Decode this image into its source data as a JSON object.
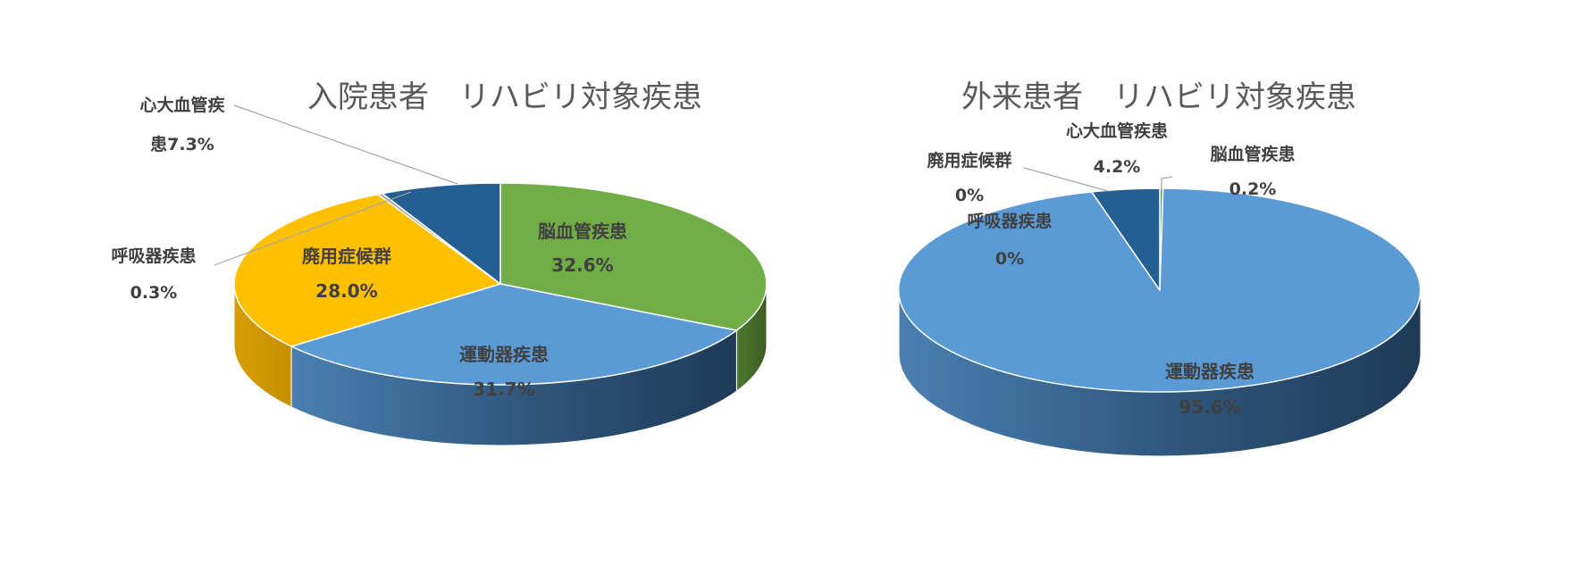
{
  "chart_data": [
    {
      "type": "pie",
      "title": "入院患者　リハビリ対象疾患",
      "slices": [
        {
          "label": "脳血管疾患",
          "value": 32.6,
          "value_text": "32.6%",
          "color": "#70AD47"
        },
        {
          "label": "運動器疾患",
          "value": 31.7,
          "value_text": "31.7%",
          "color": "#5B9BD5"
        },
        {
          "label": "廃用症候群",
          "value": 28.0,
          "value_text": "28.0%",
          "color": "#FFC000"
        },
        {
          "label": "呼吸器疾患",
          "value": 0.3,
          "value_text": "0.3%",
          "color": "#A5A5A5"
        },
        {
          "label": "心大血管疾患",
          "label_lines": [
            "心大血管疾",
            "患7.3%"
          ],
          "value": 7.3,
          "value_text": "7.3%",
          "color": "#255E91"
        }
      ]
    },
    {
      "type": "pie",
      "title": "外来患者　リハビリ対象疾患",
      "slices": [
        {
          "label": "脳血管疾患",
          "value": 0.2,
          "value_text": "0.2%",
          "color": "#70AD47"
        },
        {
          "label": "運動器疾患",
          "value": 95.6,
          "value_text": "95.6%",
          "color": "#5B9BD5"
        },
        {
          "label": "廃用症候群",
          "value": 0,
          "value_text": "0%",
          "color": "#FFC000"
        },
        {
          "label": "呼吸器疾患",
          "value": 0,
          "value_text": "0%",
          "color": "#A5A5A5"
        },
        {
          "label": "心大血管疾患",
          "value": 4.2,
          "value_text": "4.2%",
          "color": "#255E91"
        }
      ]
    }
  ]
}
